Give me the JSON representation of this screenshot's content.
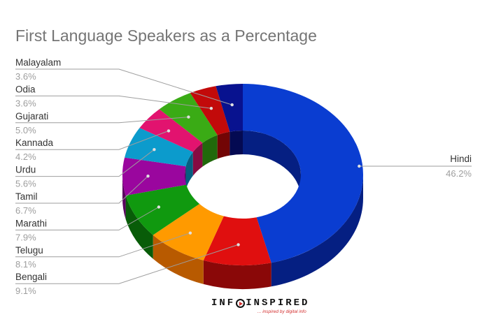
{
  "chart_data": {
    "type": "pie",
    "title": "First Language Speakers as a Percentage",
    "hole": "donut",
    "slices": [
      {
        "label": "Hindi",
        "value": 46.2,
        "display": "46.2%",
        "color": "#0a3dd1",
        "dark": "#051f82"
      },
      {
        "label": "Bengali",
        "value": 9.1,
        "display": "9.1%",
        "color": "#e00f0f",
        "dark": "#8a0808"
      },
      {
        "label": "Telugu",
        "value": 8.1,
        "display": "8.1%",
        "color": "#ff9a00",
        "dark": "#b85a00"
      },
      {
        "label": "Marathi",
        "value": 7.9,
        "display": "7.9%",
        "color": "#10990f",
        "dark": "#085c08"
      },
      {
        "label": "Tamil",
        "value": 6.7,
        "display": "6.7%",
        "color": "#9a069e",
        "dark": "#5a035e"
      },
      {
        "label": "Urdu",
        "value": 5.6,
        "display": "5.6%",
        "color": "#0c9bcc",
        "dark": "#065e80"
      },
      {
        "label": "Kannada",
        "value": 4.2,
        "display": "4.2%",
        "color": "#e2136f",
        "dark": "#860b42"
      },
      {
        "label": "Gujarati",
        "value": 5.0,
        "display": "5.0%",
        "color": "#3aab15",
        "dark": "#21690b"
      },
      {
        "label": "Odia",
        "value": 3.6,
        "display": "3.6%",
        "color": "#c20a0a",
        "dark": "#720505"
      },
      {
        "label": "Malayalam",
        "value": 3.6,
        "display": "3.6%",
        "color": "#08128f",
        "dark": "#040a52"
      }
    ]
  },
  "brand": {
    "name_left": "INF",
    "name_right": "INSPIRED",
    "tagline": "... inspired by digital info"
  }
}
